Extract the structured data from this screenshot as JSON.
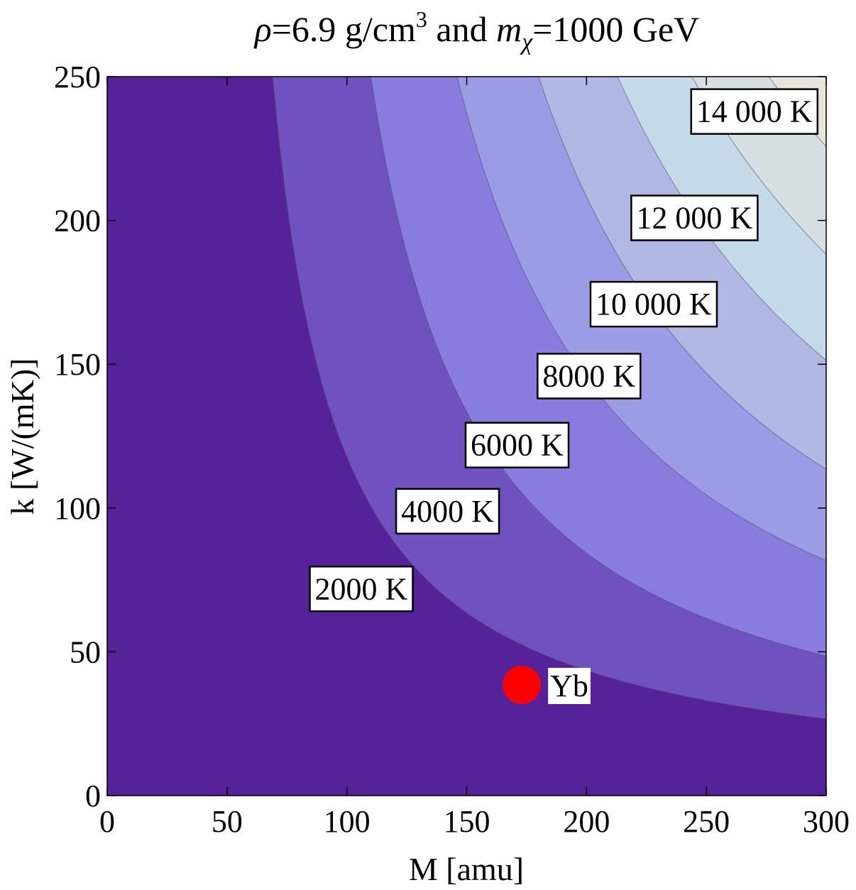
{
  "chart_data": {
    "type": "contour",
    "title": {
      "rho_symbol": "ρ",
      "rho_value": "=6.9 g/cm",
      "rho_exponent": "3",
      "conjunction": " and ",
      "m_symbol": "m",
      "m_subscript": "χ",
      "m_value": "=1000 GeV"
    },
    "xlabel": "M [amu]",
    "ylabel": "k [W/(mK)]",
    "xlim": [
      0,
      300
    ],
    "ylim": [
      0,
      250
    ],
    "xticks": [
      0,
      50,
      100,
      150,
      200,
      250,
      300
    ],
    "yticks": [
      0,
      50,
      100,
      150,
      200,
      250
    ],
    "contours": [
      {
        "value": 2000,
        "label": "2000 K",
        "label_at": [
          106,
          72
        ],
        "color": "#7052bf",
        "constant": 6900,
        "top_x": 69
      },
      {
        "value": 4000,
        "label": "4000 K",
        "label_at": [
          142,
          99
        ],
        "color": "#887ddf",
        "constant": 11450,
        "top_x": 110
      },
      {
        "value": 6000,
        "label": "6000 K",
        "label_at": [
          171,
          122
        ],
        "color": "#9c9be6",
        "constant": 18700,
        "top_x": 146
      },
      {
        "value": 8000,
        "label": "8000 K",
        "label_at": [
          201,
          146
        ],
        "color": "#b1b8e4",
        "constant": 24950,
        "top_x": 180
      },
      {
        "value": 10000,
        "label": "10 000 K",
        "label_at": [
          228,
          171
        ],
        "color": "#c5dae9",
        "constant": 33400,
        "top_x": 213
      },
      {
        "value": 12000,
        "label": "12 000 K",
        "label_at": [
          245,
          201
        ],
        "color": "#d8dfe3",
        "constant": 42640,
        "top_x": 244
      },
      {
        "value": 14000,
        "label": "14 000 K",
        "label_at": [
          270,
          238
        ],
        "color": "#e8e4dc",
        "constant": 55840,
        "top_x": 276
      }
    ],
    "base_color": "#56229a",
    "line_color": "#4a4a66",
    "points": [
      {
        "name": "Yb",
        "M": 173,
        "k": 38.5,
        "color": "#ff0000"
      }
    ]
  }
}
